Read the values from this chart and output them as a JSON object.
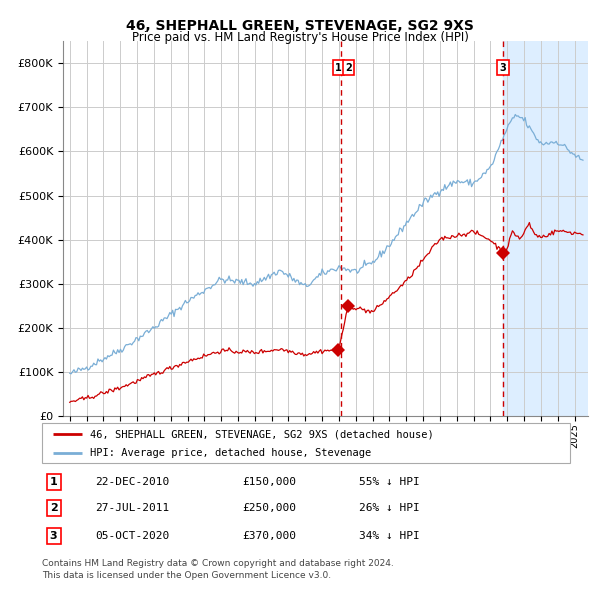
{
  "title": "46, SHEPHALL GREEN, STEVENAGE, SG2 9XS",
  "subtitle": "Price paid vs. HM Land Registry's House Price Index (HPI)",
  "legend_red": "46, SHEPHALL GREEN, STEVENAGE, SG2 9XS (detached house)",
  "legend_blue": "HPI: Average price, detached house, Stevenage",
  "footnote1": "Contains HM Land Registry data © Crown copyright and database right 2024.",
  "footnote2": "This data is licensed under the Open Government Licence v3.0.",
  "transactions": [
    {
      "label": "1",
      "date": "22-DEC-2010",
      "price": "£150,000",
      "pct": "55% ↓ HPI",
      "x_year": 2010.97,
      "y_val": 150000
    },
    {
      "label": "2",
      "date": "27-JUL-2011",
      "price": "£250,000",
      "pct": "26% ↓ HPI",
      "x_year": 2011.56,
      "y_val": 250000
    },
    {
      "label": "3",
      "date": "05-OCT-2020",
      "price": "£370,000",
      "pct": "34% ↓ HPI",
      "x_year": 2020.76,
      "y_val": 370000
    }
  ],
  "vline1_x": 2011.1,
  "vline2_x": 2020.76,
  "shading_start": 2020.76,
  "ylim": [
    0,
    850000
  ],
  "yticks": [
    0,
    100000,
    200000,
    300000,
    400000,
    500000,
    600000,
    700000,
    800000
  ],
  "ytick_labels": [
    "£0",
    "£100K",
    "£200K",
    "£300K",
    "£400K",
    "£500K",
    "£600K",
    "£700K",
    "£800K"
  ],
  "red_color": "#cc0000",
  "blue_color": "#7aaed6",
  "shade_color": "#ddeeff",
  "grid_color": "#cccccc",
  "vline_color": "#cc0000",
  "xlim_left": 1994.6,
  "xlim_right": 2025.8
}
